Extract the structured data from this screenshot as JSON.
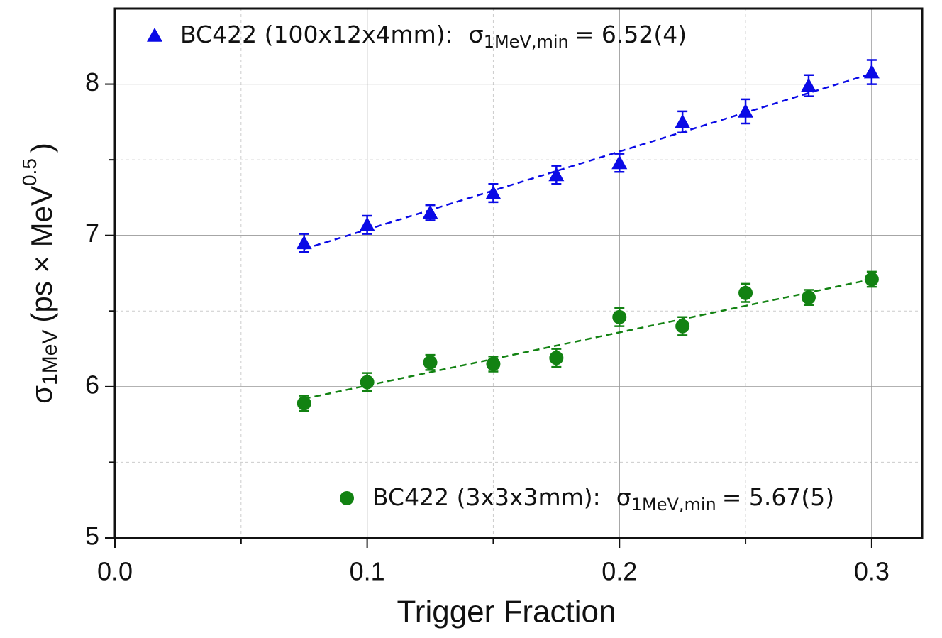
{
  "chart_data": {
    "type": "scatter",
    "x_label": "Trigger Fraction",
    "y_label": {
      "symbol": "σ",
      "subscript": "1MeV",
      "unit": "(ps × MeV",
      "superscript": "0.5",
      "close": ")"
    },
    "xlim": [
      0,
      0.32
    ],
    "ylim": [
      5,
      8.5
    ],
    "xticks": [
      {
        "value": 0,
        "label": "0.0"
      },
      0.1,
      0.2,
      0.3
    ],
    "yticks": [
      5,
      6,
      7,
      8
    ],
    "x_minor_ticks": [
      0.05,
      0.15,
      0.25
    ],
    "y_minor_ticks": [
      5.5,
      6.5,
      7.5
    ],
    "grid": true,
    "x": [
      0.075,
      0.1,
      0.125,
      0.15,
      0.175,
      0.2,
      0.225,
      0.25,
      0.275,
      0.3
    ],
    "series": [
      {
        "name": "BC422 (100x12x4mm):",
        "color": "#0a0ae6",
        "marker": "triangle",
        "stat_symbol": "σ",
        "stat_subscript": "1MeV,min",
        "stat_value": "= 6.52(4)",
        "values": [
          6.95,
          7.07,
          7.15,
          7.28,
          7.4,
          7.48,
          7.75,
          7.82,
          7.99,
          8.08
        ],
        "errors": [
          0.06,
          0.06,
          0.05,
          0.06,
          0.06,
          0.06,
          0.07,
          0.08,
          0.07,
          0.08
        ],
        "fit": {
          "x": [
            0.075,
            0.3
          ],
          "y": [
            6.91,
            8.07
          ]
        }
      },
      {
        "name": "BC422 (3x3x3mm):",
        "color": "#128212",
        "marker": "circle",
        "stat_symbol": "σ",
        "stat_subscript": "1MeV,min",
        "stat_value": "= 5.67(5)",
        "values": [
          5.89,
          6.03,
          6.16,
          6.15,
          6.19,
          6.46,
          6.4,
          6.62,
          6.59,
          6.71
        ],
        "errors": [
          0.05,
          0.06,
          0.05,
          0.05,
          0.06,
          0.06,
          0.06,
          0.06,
          0.05,
          0.05
        ],
        "fit": {
          "x": [
            0.075,
            0.3
          ],
          "y": [
            5.92,
            6.71
          ]
        }
      }
    ]
  }
}
